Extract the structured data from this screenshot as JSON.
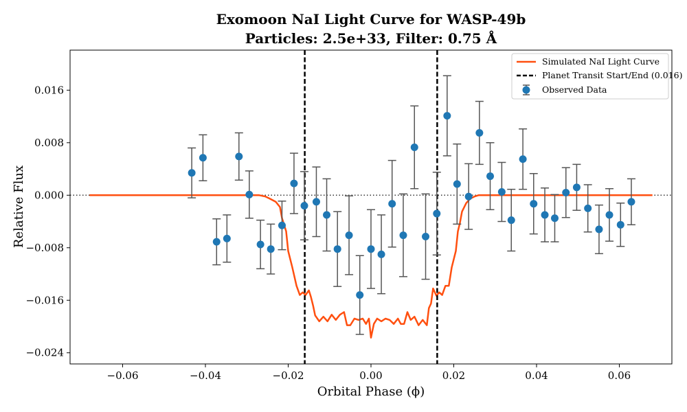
{
  "chart_data": {
    "type": "line",
    "title": "Exomoon NaI Light Curve for WASP-49b",
    "subtitle": "Particles: 2.5e+33, Filter: 0.75 Å",
    "xlabel": "Orbital Phase (ϕ)",
    "ylabel": "Relative Flux",
    "xlim": [
      -0.0727,
      0.0727
    ],
    "ylim": [
      -0.0257,
      0.0221
    ],
    "xticks": [
      -0.06,
      -0.04,
      -0.02,
      0.0,
      0.02,
      0.04,
      0.06
    ],
    "xtick_labels": [
      "−0.06",
      "−0.04",
      "−0.02",
      "0.00",
      "0.02",
      "0.04",
      "0.06"
    ],
    "yticks": [
      0.016,
      0.008,
      0.0,
      -0.008,
      -0.016,
      -0.024
    ],
    "ytick_labels": [
      "0.016",
      "0.008",
      "0.000",
      "−0.008",
      "−0.016",
      "−0.024"
    ],
    "grid": false,
    "legend_position": "top-right",
    "colors": {
      "model": "#ff4f0f",
      "data": "#1f77b4",
      "errorbar": "#555555",
      "transit": "#000000",
      "baseline": "#333333"
    },
    "legend": [
      {
        "label": "Simulated NaI Light Curve",
        "kind": "line"
      },
      {
        "label": "Planet Transit Start/End (0.016)",
        "kind": "dashed"
      },
      {
        "label": "Observed Data",
        "kind": "errorbar"
      }
    ],
    "transit_lines": [
      -0.016,
      0.016
    ],
    "baseline_y": 0.0,
    "model_curve": [
      [
        -0.068,
        0.0
      ],
      [
        -0.06,
        0.0
      ],
      [
        -0.05,
        0.0
      ],
      [
        -0.04,
        0.0
      ],
      [
        -0.03,
        0.0
      ],
      [
        -0.027,
        0.0
      ],
      [
        -0.0255,
        -0.0002
      ],
      [
        -0.0245,
        -0.0005
      ],
      [
        -0.023,
        -0.001
      ],
      [
        -0.022,
        -0.0018
      ],
      [
        -0.0215,
        -0.0035
      ],
      [
        -0.021,
        -0.0045
      ],
      [
        -0.0205,
        -0.0055
      ],
      [
        -0.02,
        -0.0085
      ],
      [
        -0.019,
        -0.011
      ],
      [
        -0.018,
        -0.0138
      ],
      [
        -0.0172,
        -0.0152
      ],
      [
        -0.0165,
        -0.0148
      ],
      [
        -0.0158,
        -0.0152
      ],
      [
        -0.015,
        -0.0145
      ],
      [
        -0.0145,
        -0.0155
      ],
      [
        -0.014,
        -0.0168
      ],
      [
        -0.0135,
        -0.0183
      ],
      [
        -0.0125,
        -0.0192
      ],
      [
        -0.0115,
        -0.0185
      ],
      [
        -0.0105,
        -0.0192
      ],
      [
        -0.0095,
        -0.0182
      ],
      [
        -0.0085,
        -0.019
      ],
      [
        -0.0075,
        -0.0182
      ],
      [
        -0.0065,
        -0.0178
      ],
      [
        -0.0058,
        -0.0198
      ],
      [
        -0.005,
        -0.0198
      ],
      [
        -0.004,
        -0.0188
      ],
      [
        -0.003,
        -0.019
      ],
      [
        -0.002,
        -0.0188
      ],
      [
        -0.0012,
        -0.0196
      ],
      [
        -0.0005,
        -0.0188
      ],
      [
        0.0,
        -0.0217
      ],
      [
        0.0007,
        -0.0196
      ],
      [
        0.0015,
        -0.0188
      ],
      [
        0.0025,
        -0.0192
      ],
      [
        0.0035,
        -0.0188
      ],
      [
        0.0045,
        -0.019
      ],
      [
        0.0055,
        -0.0196
      ],
      [
        0.0065,
        -0.0188
      ],
      [
        0.0072,
        -0.0196
      ],
      [
        0.008,
        -0.0196
      ],
      [
        0.0088,
        -0.0178
      ],
      [
        0.0096,
        -0.019
      ],
      [
        0.0105,
        -0.0185
      ],
      [
        0.0115,
        -0.0198
      ],
      [
        0.0125,
        -0.019
      ],
      [
        0.0135,
        -0.0198
      ],
      [
        0.014,
        -0.0172
      ],
      [
        0.0145,
        -0.0165
      ],
      [
        0.015,
        -0.0142
      ],
      [
        0.0158,
        -0.0153
      ],
      [
        0.0165,
        -0.0148
      ],
      [
        0.0172,
        -0.0152
      ],
      [
        0.018,
        -0.0138
      ],
      [
        0.0188,
        -0.0138
      ],
      [
        0.0195,
        -0.011
      ],
      [
        0.0205,
        -0.0085
      ],
      [
        0.021,
        -0.0055
      ],
      [
        0.0215,
        -0.0042
      ],
      [
        0.022,
        -0.0025
      ],
      [
        0.023,
        -0.0012
      ],
      [
        0.024,
        -0.0005
      ],
      [
        0.025,
        -0.0002
      ],
      [
        0.026,
        0.0
      ],
      [
        0.03,
        0.0
      ],
      [
        0.04,
        0.0
      ],
      [
        0.05,
        0.0
      ],
      [
        0.06,
        0.0
      ],
      [
        0.068,
        0.0
      ]
    ],
    "observed_data": [
      {
        "x": -0.0433,
        "y": 0.0034,
        "err": 0.0038
      },
      {
        "x": -0.0406,
        "y": 0.0057,
        "err": 0.0035
      },
      {
        "x": -0.0373,
        "y": -0.0071,
        "err": 0.0035
      },
      {
        "x": -0.0348,
        "y": -0.0066,
        "err": 0.0036
      },
      {
        "x": -0.0319,
        "y": 0.0059,
        "err": 0.0036
      },
      {
        "x": -0.0294,
        "y": 0.0001,
        "err": 0.0036
      },
      {
        "x": -0.0267,
        "y": -0.0075,
        "err": 0.0037
      },
      {
        "x": -0.0242,
        "y": -0.0082,
        "err": 0.0038
      },
      {
        "x": -0.0215,
        "y": -0.0046,
        "err": 0.0037
      },
      {
        "x": -0.0186,
        "y": 0.0018,
        "err": 0.0046
      },
      {
        "x": -0.0161,
        "y": -0.0016,
        "err": 0.0052
      },
      {
        "x": -0.0132,
        "y": -0.001,
        "err": 0.0053
      },
      {
        "x": -0.0107,
        "y": -0.003,
        "err": 0.0055
      },
      {
        "x": -0.0081,
        "y": -0.0082,
        "err": 0.0057
      },
      {
        "x": -0.0053,
        "y": -0.0061,
        "err": 0.006
      },
      {
        "x": -0.0027,
        "y": -0.0152,
        "err": 0.006
      },
      {
        "x": 0.0,
        "y": -0.0082,
        "err": 0.006
      },
      {
        "x": 0.0025,
        "y": -0.009,
        "err": 0.006
      },
      {
        "x": 0.0051,
        "y": -0.0013,
        "err": 0.0066
      },
      {
        "x": 0.0078,
        "y": -0.0061,
        "err": 0.0063
      },
      {
        "x": 0.0105,
        "y": 0.0073,
        "err": 0.0063
      },
      {
        "x": 0.0132,
        "y": -0.0063,
        "err": 0.0065
      },
      {
        "x": 0.0159,
        "y": -0.0028,
        "err": 0.0063
      },
      {
        "x": 0.0184,
        "y": 0.0121,
        "err": 0.0061
      },
      {
        "x": 0.0208,
        "y": 0.0017,
        "err": 0.0061
      },
      {
        "x": 0.0236,
        "y": -0.0002,
        "err": 0.005
      },
      {
        "x": 0.0262,
        "y": 0.0095,
        "err": 0.0048
      },
      {
        "x": 0.0288,
        "y": 0.0029,
        "err": 0.0051
      },
      {
        "x": 0.0316,
        "y": 0.0005,
        "err": 0.0045
      },
      {
        "x": 0.0339,
        "y": -0.0038,
        "err": 0.0047
      },
      {
        "x": 0.0367,
        "y": 0.0055,
        "err": 0.0046
      },
      {
        "x": 0.0393,
        "y": -0.0013,
        "err": 0.0046
      },
      {
        "x": 0.042,
        "y": -0.003,
        "err": 0.0041
      },
      {
        "x": 0.0444,
        "y": -0.0035,
        "err": 0.0036
      },
      {
        "x": 0.0471,
        "y": 0.0004,
        "err": 0.0038
      },
      {
        "x": 0.0497,
        "y": 0.0012,
        "err": 0.0035
      },
      {
        "x": 0.0524,
        "y": -0.002,
        "err": 0.0036
      },
      {
        "x": 0.0551,
        "y": -0.0052,
        "err": 0.0037
      },
      {
        "x": 0.0576,
        "y": -0.003,
        "err": 0.004
      },
      {
        "x": 0.0603,
        "y": -0.0045,
        "err": 0.0033
      },
      {
        "x": 0.0629,
        "y": -0.001,
        "err": 0.0035
      }
    ]
  }
}
